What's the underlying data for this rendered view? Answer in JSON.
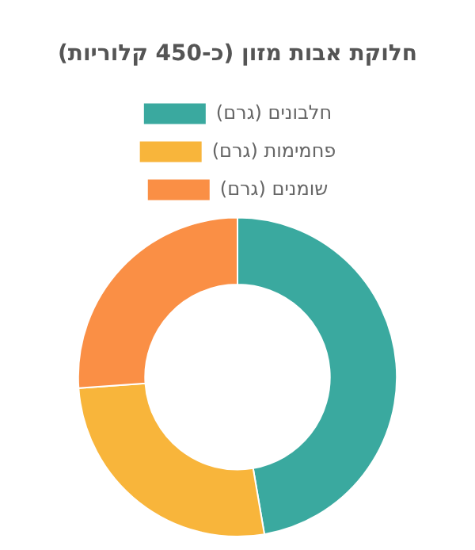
{
  "chart_data": {
    "type": "donut",
    "title": "חלוקת אבות מזון (כ-450 קלוריות)",
    "categories": [
      "חלבונים (גרם)",
      "פחמימות (גרם)",
      "שומנים (גרם)"
    ],
    "values": [
      47.3,
      26.6,
      26.1
    ],
    "colors": [
      "#3aa99f",
      "#f8b53b",
      "#fa8f45"
    ],
    "legend": "top"
  }
}
